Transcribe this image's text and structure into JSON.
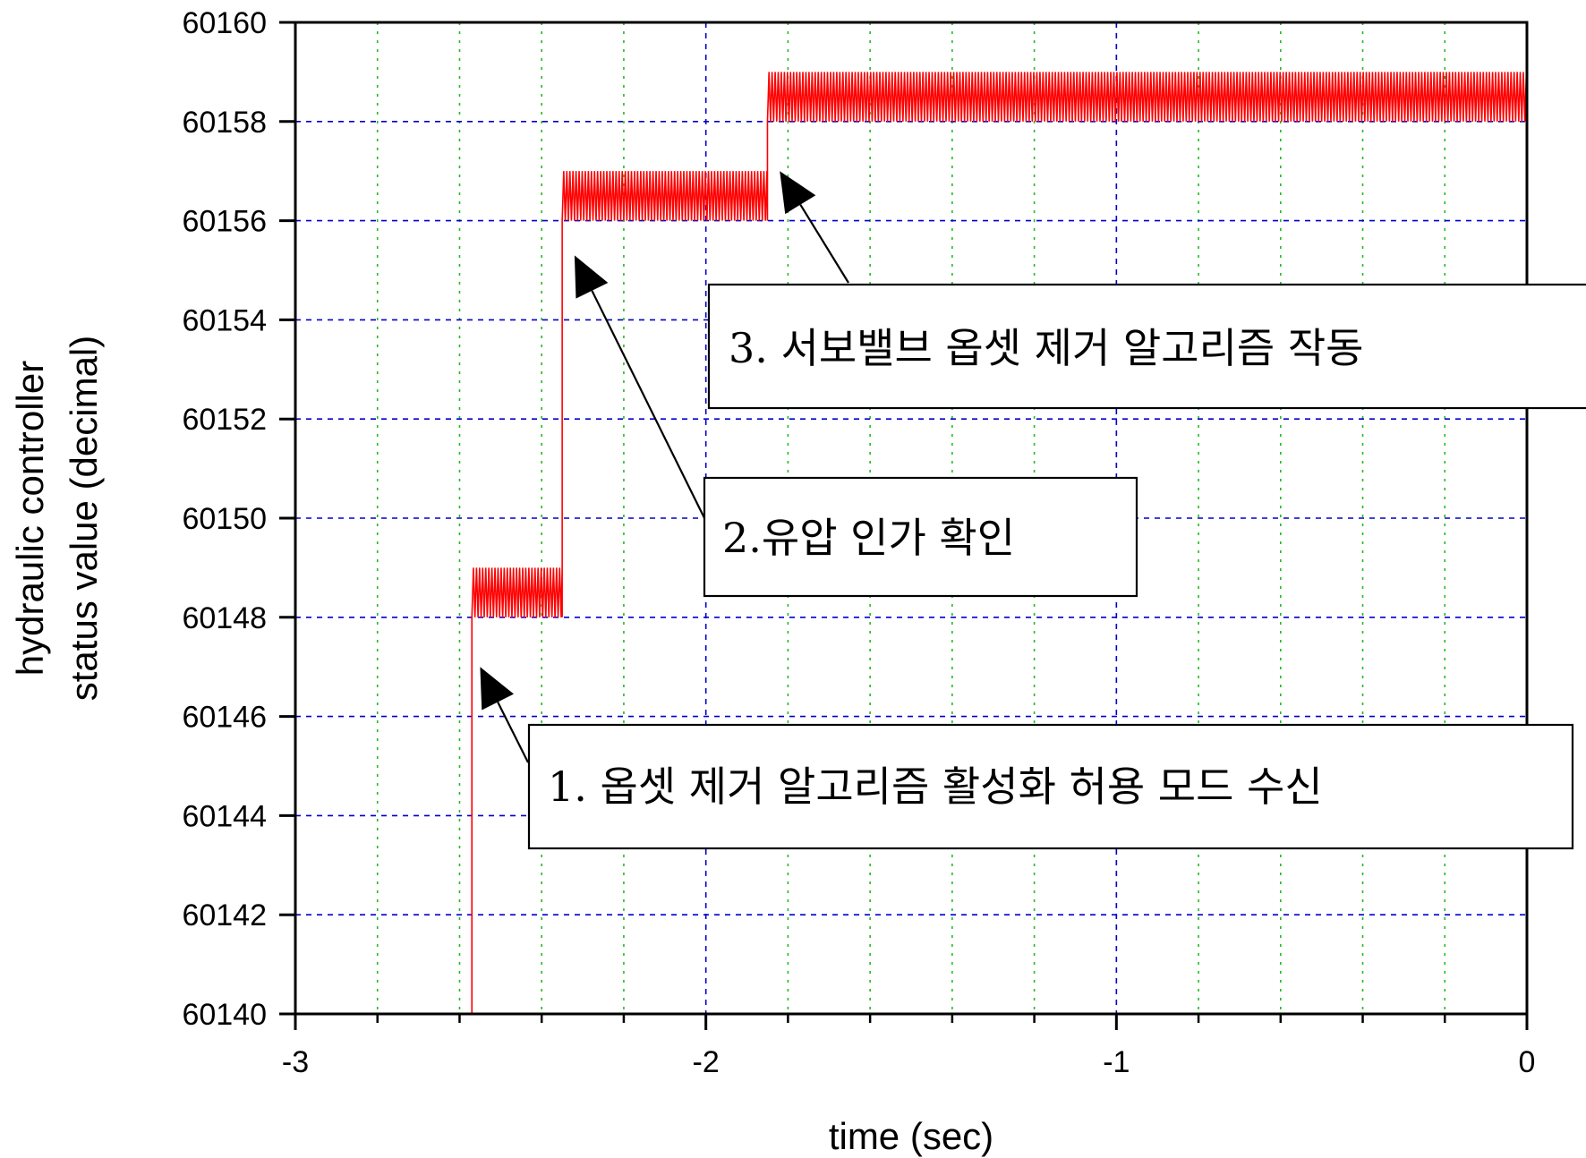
{
  "chart_data": {
    "type": "line",
    "xlabel": "time (sec)",
    "ylabel": [
      "hydraulic controller",
      "status value (decimal)"
    ],
    "xlim": [
      -3,
      0
    ],
    "ylim": [
      60140,
      60160
    ],
    "x_ticks": [
      -3,
      -2,
      -1,
      0
    ],
    "x_tick_labels": [
      "-3",
      "-2",
      "-1",
      "0"
    ],
    "y_ticks": [
      60140,
      60142,
      60144,
      60146,
      60148,
      60150,
      60152,
      60154,
      60156,
      60158,
      60160
    ],
    "y_tick_labels": [
      "60140",
      "60142",
      "60144",
      "60146",
      "60148",
      "60150",
      "60152",
      "60154",
      "60156",
      "60158",
      "60160"
    ],
    "grid": true,
    "colors": {
      "series": "#ff0000",
      "grid_major": "#0000cc",
      "grid_minor": "#22bb22"
    },
    "series": [
      {
        "segments": [
          {
            "x_start": -2.57,
            "x_end": -2.35,
            "low": 60148,
            "high": 60149
          },
          {
            "x_start": -2.35,
            "x_end": -1.85,
            "low": 60156,
            "high": 60157
          },
          {
            "x_start": -1.85,
            "x_end": 0.0,
            "low": 60158,
            "high": 60159
          }
        ],
        "start_point": {
          "x": -2.57,
          "y": 60140
        }
      }
    ],
    "annotations": [
      {
        "text": "1. 옵셋 제거 알고리즘 활성화 허용 모드 수신",
        "arrow_to": {
          "x": -2.55,
          "y": 60147
        }
      },
      {
        "text": "2.유압 인가 확인",
        "arrow_to": {
          "x": -2.32,
          "y": 60155.3
        }
      },
      {
        "text": "3. 서보밸브 옵셋 제거 알고리즘 작동",
        "arrow_to": {
          "x": -1.82,
          "y": 60157
        }
      }
    ]
  }
}
